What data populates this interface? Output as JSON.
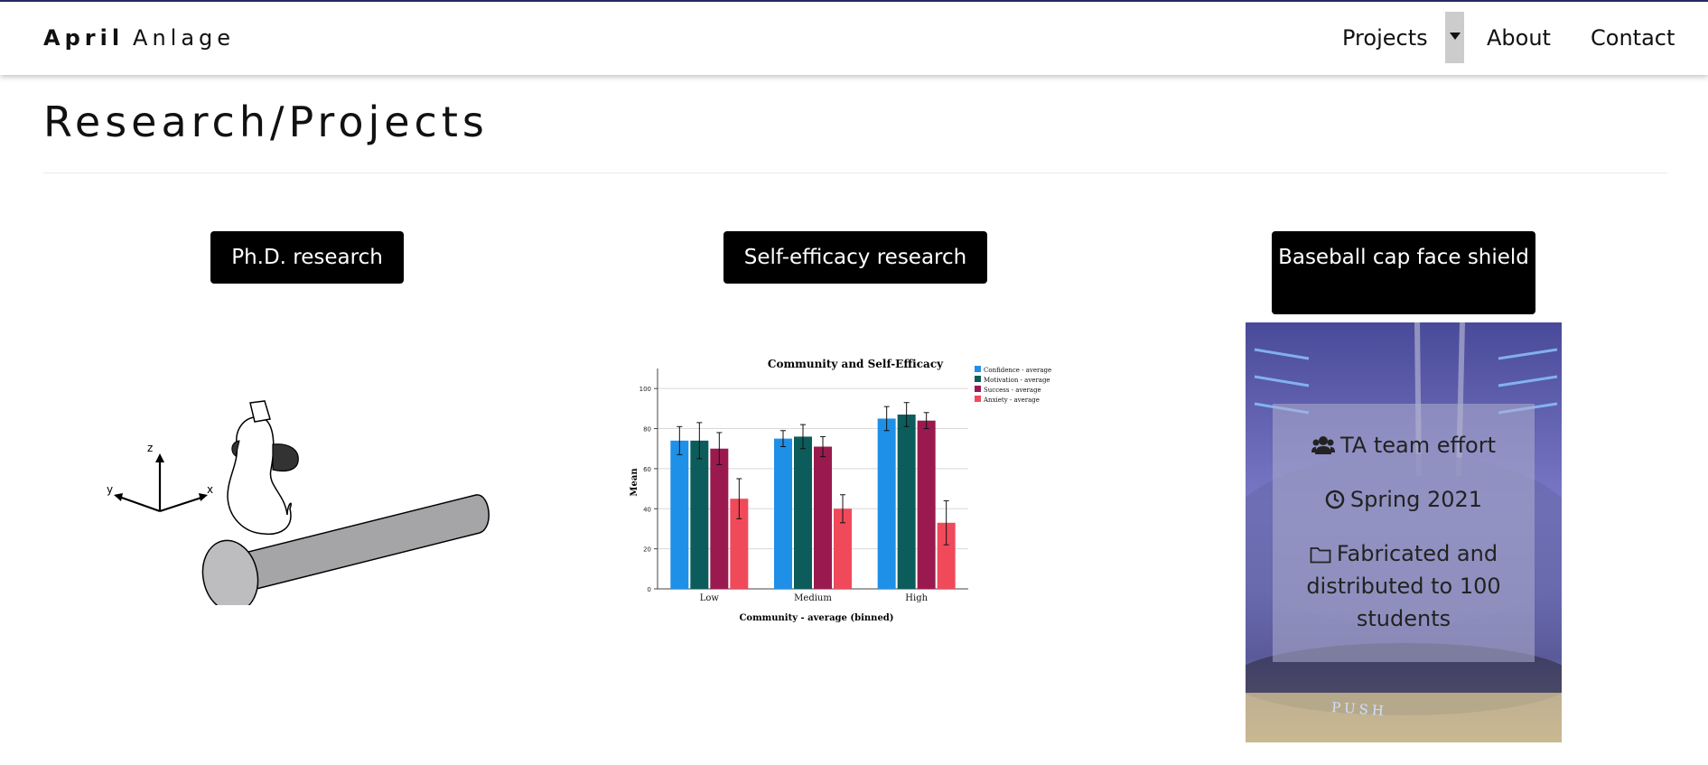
{
  "navbar": {
    "brand_first": "April",
    "brand_last": "Anlage",
    "links": {
      "projects": "Projects",
      "about": "About",
      "contact": "Contact"
    },
    "toggle_icon": "caret-down-icon"
  },
  "page": {
    "title": "Research/Projects"
  },
  "cards": {
    "phd": {
      "label": "Ph.D. research",
      "axes": {
        "x": "x",
        "y": "y",
        "z": "z"
      }
    },
    "self_efficacy": {
      "label": "Self-efficacy research"
    },
    "cap": {
      "label": "Baseball cap face shield",
      "team": "TA team effort",
      "date": "Spring 2021",
      "description": "Fabricated and distributed to 100 students",
      "photo_text": "PUSH",
      "icons": [
        "users-icon",
        "clock-icon",
        "folder-icon"
      ]
    }
  },
  "chart_data": {
    "type": "bar",
    "title": "Community and Self-Efficacy",
    "xlabel": "Community - average (binned)",
    "ylabel": "Mean",
    "categories": [
      "Low",
      "Medium",
      "High"
    ],
    "ylim": [
      0,
      110
    ],
    "yticks": [
      0,
      20,
      40,
      60,
      80,
      100
    ],
    "grid": true,
    "legend_position": "top-right",
    "series": [
      {
        "name": "Confidence - average",
        "color": "#1e90e8",
        "values": [
          74,
          75,
          85
        ],
        "err": [
          7,
          4,
          6
        ]
      },
      {
        "name": "Motivation - average",
        "color": "#0d5c5c",
        "values": [
          74,
          76,
          87
        ],
        "err": [
          9,
          6,
          6
        ]
      },
      {
        "name": "Success - average",
        "color": "#9a1a4f",
        "values": [
          70,
          71,
          84
        ],
        "err": [
          8,
          5,
          4
        ]
      },
      {
        "name": "Anxiety - average",
        "color": "#f04a5a",
        "values": [
          45,
          40,
          33
        ],
        "err": [
          10,
          7,
          11
        ]
      }
    ]
  }
}
